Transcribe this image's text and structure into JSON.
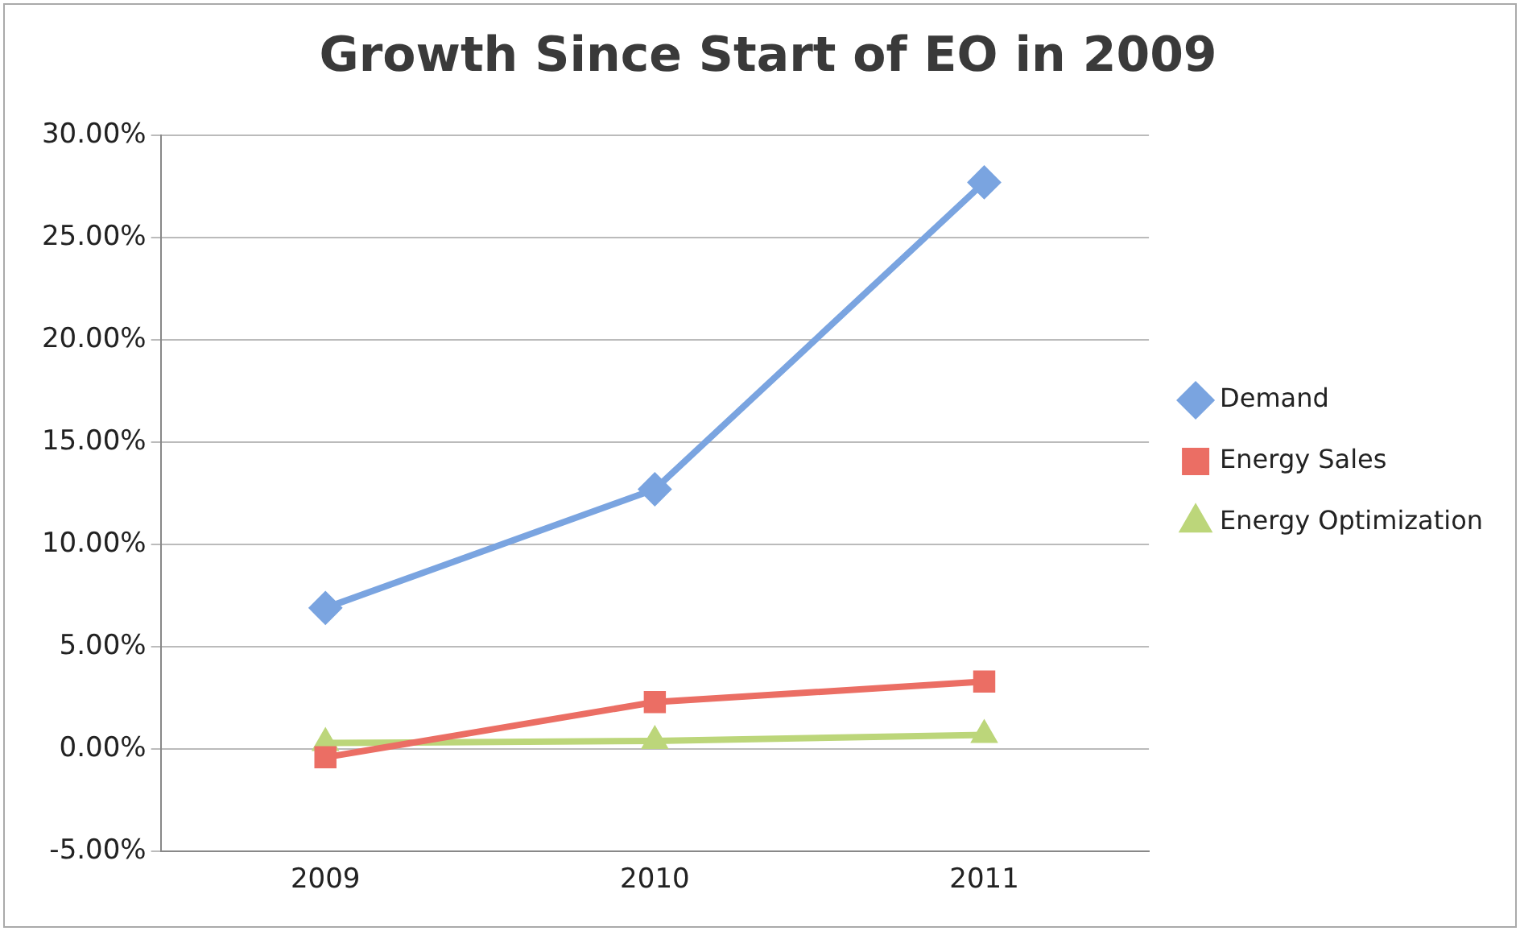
{
  "chart_data": {
    "type": "line",
    "title": "Growth Since Start of EO in 2009",
    "categories": [
      "2009",
      "2010",
      "2011"
    ],
    "series": [
      {
        "name": "Demand",
        "color": "#7aa4e0",
        "marker": "diamond",
        "values": [
          6.9,
          12.7,
          27.7
        ]
      },
      {
        "name": "Energy Sales",
        "color": "#eb6e64",
        "marker": "square",
        "values": [
          -0.4,
          2.3,
          3.3
        ]
      },
      {
        "name": "Energy Optimization",
        "color": "#bcd67a",
        "marker": "triangle",
        "values": [
          0.3,
          0.4,
          0.7
        ]
      }
    ],
    "ylim": [
      -5,
      30
    ],
    "yticks": [
      {
        "value": -5,
        "label": "-5.00%"
      },
      {
        "value": 0,
        "label": "0.00%"
      },
      {
        "value": 5,
        "label": "5.00%"
      },
      {
        "value": 10,
        "label": "10.00%"
      },
      {
        "value": 15,
        "label": "15.00%"
      },
      {
        "value": 20,
        "label": "20.00%"
      },
      {
        "value": 25,
        "label": "25.00%"
      },
      {
        "value": 30,
        "label": "30.00%"
      }
    ],
    "grid": "y",
    "legend": "right"
  }
}
